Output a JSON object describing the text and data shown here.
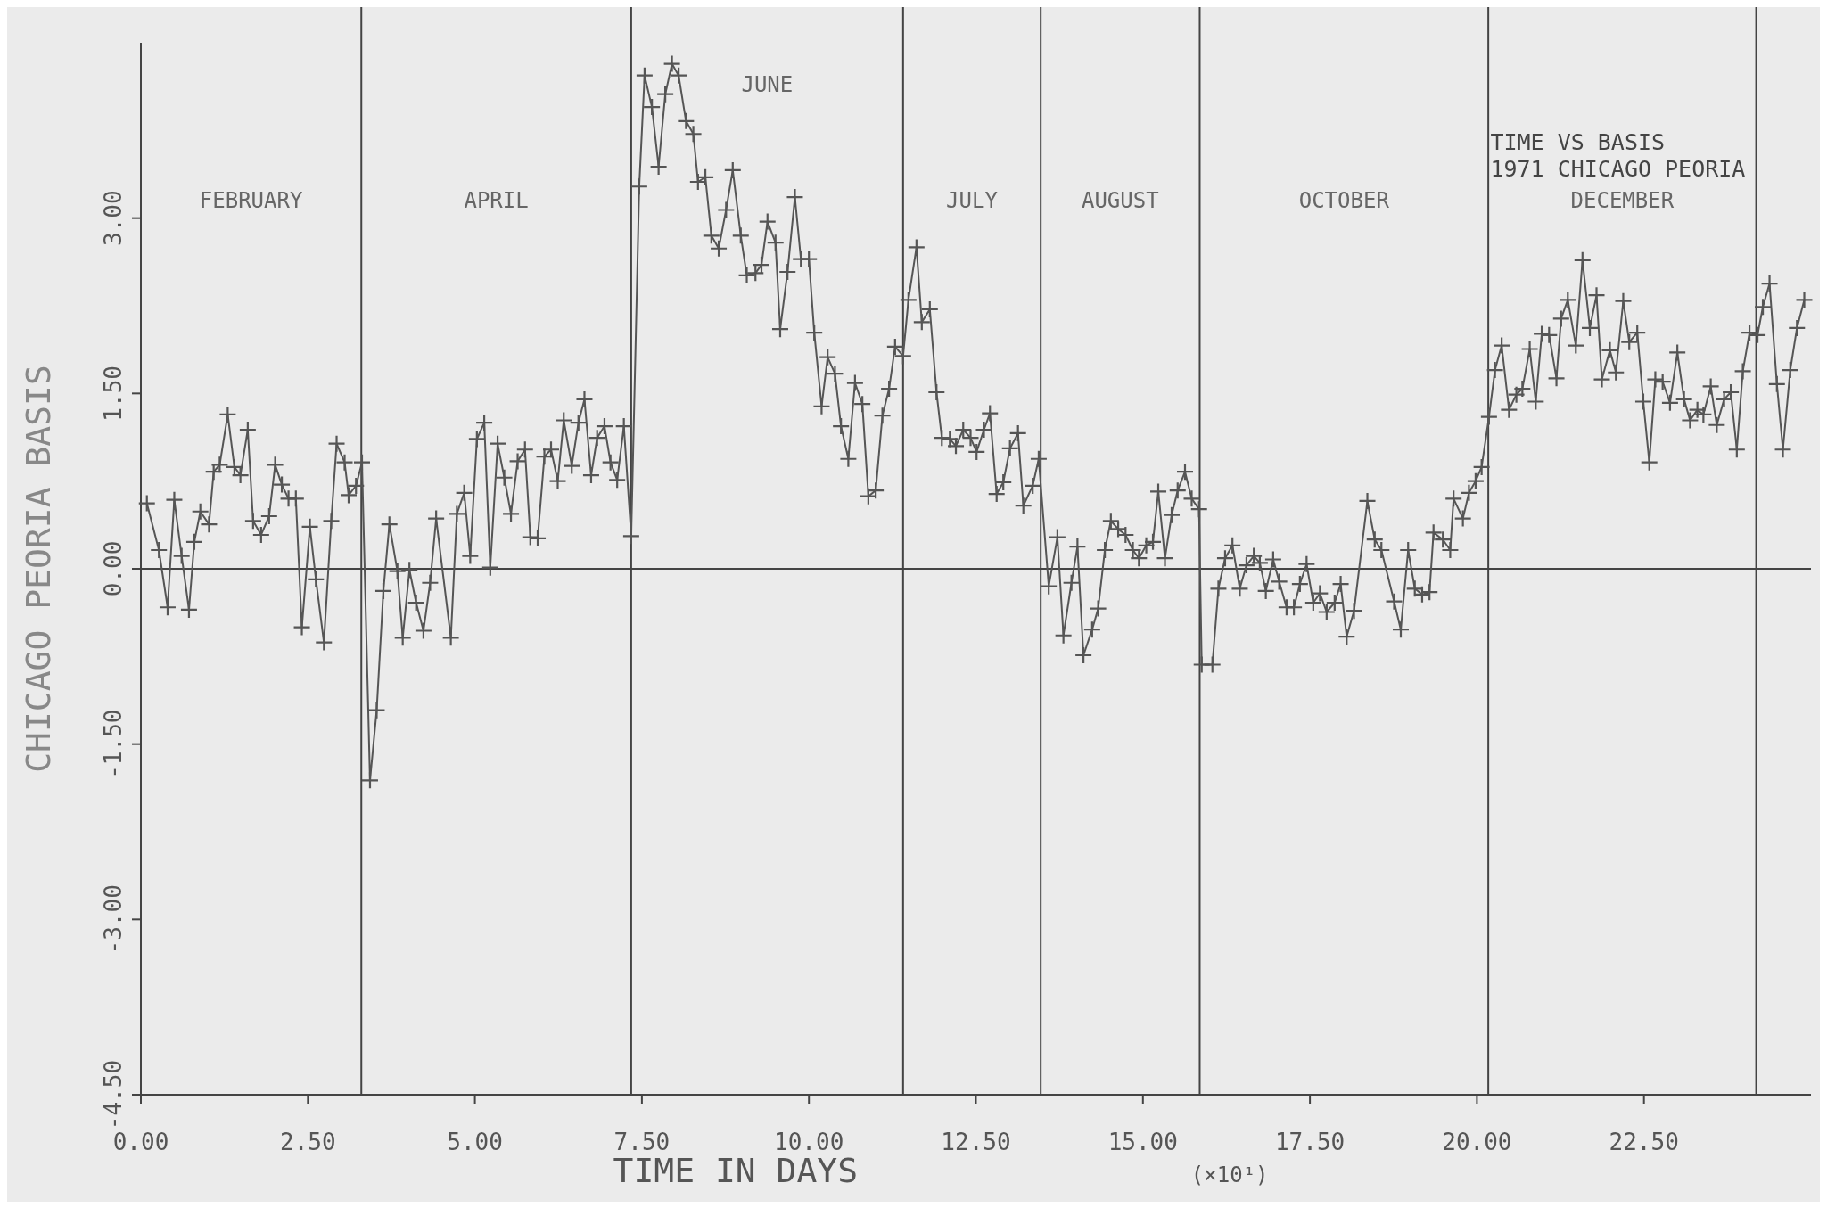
{
  "chart_data": {
    "type": "line",
    "title": "TIME VS BASIS",
    "subtitle": "1971 CHICAGO PEORIA",
    "xlabel": "TIME IN DAYS",
    "ylabel": "CHICAGO PEORIA BASIS",
    "annotations": [
      "(×10¹)",
      "FEBRUARY",
      "APRIL",
      "JUNE",
      "JULY",
      "AUGUST",
      "OCTOBER",
      "DECEMBER"
    ],
    "marker": "cross",
    "line_style": "solid",
    "xlim": [
      0,
      25
    ],
    "ylim": [
      -4.5,
      4.5
    ],
    "xticks": [
      {
        "value": 0,
        "label": "0.00"
      },
      {
        "value": 2.5,
        "label": "2.50"
      },
      {
        "value": 5,
        "label": "5.00"
      },
      {
        "value": 7.5,
        "label": "7.50"
      },
      {
        "value": 10,
        "label": "10.00"
      },
      {
        "value": 12.5,
        "label": "12.50"
      },
      {
        "value": 15,
        "label": "15.00"
      },
      {
        "value": 17.5,
        "label": "17.50"
      },
      {
        "value": 20,
        "label": "20.00"
      },
      {
        "value": 22.5,
        "label": "22.50"
      }
    ],
    "yticks": [
      {
        "value": -4.5,
        "label": "-4.50"
      },
      {
        "value": -3,
        "label": "-3.00"
      },
      {
        "value": -1.5,
        "label": "-1.50"
      },
      {
        "value": 0,
        "label": "0.00"
      },
      {
        "value": 1.5,
        "label": "1.50"
      },
      {
        "value": 3,
        "label": "3.00"
      }
    ],
    "ref_lines": [
      {
        "axis": "y",
        "value": 0
      },
      {
        "axis": "x",
        "value": 3.3
      },
      {
        "axis": "x",
        "value": 7.34
      },
      {
        "axis": "x",
        "value": 11.41
      },
      {
        "axis": "x",
        "value": 13.47
      },
      {
        "axis": "x",
        "value": 15.85
      },
      {
        "axis": "x",
        "value": 20.17
      },
      {
        "axis": "x",
        "value": 24.18
      }
    ],
    "series": [
      {
        "color": "#555555",
        "x": [
          0.09,
          0.27,
          0.4,
          0.5,
          0.61,
          0.72,
          0.8,
          0.89,
          1.02,
          1.09,
          1.18,
          1.3,
          1.4,
          1.49,
          1.6,
          1.68,
          1.8,
          1.92,
          2.01,
          2.11,
          2.21,
          2.32,
          2.41,
          2.53,
          2.62,
          2.74,
          2.85,
          2.93,
          3.05,
          3.11,
          3.22,
          3.31,
          3.43,
          3.53,
          3.63,
          3.72,
          3.84,
          3.92,
          4.02,
          4.12,
          4.23,
          4.33,
          4.42,
          4.64,
          4.73,
          4.84,
          4.93,
          5.03,
          5.14,
          5.23,
          5.34,
          5.44,
          5.54,
          5.64,
          5.75,
          5.83,
          5.94,
          6.04,
          6.14,
          6.24,
          6.33,
          6.45,
          6.55,
          6.64,
          6.74,
          6.83,
          6.94,
          7.03,
          7.13,
          7.23,
          7.34,
          7.46,
          7.54,
          7.65,
          7.75,
          7.85,
          7.95,
          8.05,
          8.16,
          8.27,
          8.34,
          8.45,
          8.54,
          8.65,
          8.76,
          8.86,
          8.98,
          9.07,
          9.2,
          9.29,
          9.38,
          9.5,
          9.57,
          9.68,
          9.79,
          9.88,
          10.0,
          10.08,
          10.19,
          10.28,
          10.39,
          10.48,
          10.59,
          10.69,
          10.8,
          10.89,
          11.0,
          11.1,
          11.2,
          11.29,
          11.41,
          11.49,
          11.61,
          11.69,
          11.81,
          11.91,
          11.99,
          12.11,
          12.2,
          12.31,
          12.42,
          12.51,
          12.62,
          12.71,
          12.81,
          12.91,
          13.01,
          13.13,
          13.21,
          13.35,
          13.44,
          13.59,
          13.72,
          13.81,
          13.93,
          14.02,
          14.11,
          14.24,
          14.33,
          14.43,
          14.52,
          14.63,
          14.74,
          14.85,
          14.94,
          15.05,
          15.15,
          15.23,
          15.33,
          15.43,
          15.52,
          15.63,
          15.73,
          15.84,
          15.88,
          16.04,
          16.13,
          16.23,
          16.34,
          16.45,
          16.55,
          16.66,
          16.75,
          16.84,
          16.95,
          17.04,
          17.15,
          17.26,
          17.35,
          17.45,
          17.55,
          17.65,
          17.75,
          17.87,
          17.96,
          18.05,
          18.16,
          18.36,
          18.47,
          18.57,
          18.76,
          18.86,
          18.97,
          19.07,
          19.18,
          19.29,
          19.35,
          19.49,
          19.6,
          19.65,
          19.79,
          19.88,
          19.98,
          20.07,
          20.18,
          20.27,
          20.37,
          20.48,
          20.59,
          20.68,
          20.79,
          20.88,
          20.97,
          21.08,
          21.19,
          21.26,
          21.36,
          21.48,
          21.58,
          21.69,
          21.79,
          21.87,
          21.99,
          22.08,
          22.19,
          22.28,
          22.4,
          22.49,
          22.58,
          22.67,
          22.78,
          22.89,
          23.0,
          23.1,
          23.19,
          23.3,
          23.39,
          23.5,
          23.59,
          23.7,
          23.8,
          23.89,
          23.98,
          24.08,
          24.2,
          24.28,
          24.38,
          24.49,
          24.58,
          24.69,
          24.79,
          24.9
        ],
        "values": [
          0.56,
          0.16,
          -0.33,
          0.59,
          0.11,
          -0.35,
          0.23,
          0.49,
          0.38,
          0.83,
          0.89,
          1.32,
          0.87,
          0.8,
          1.19,
          0.41,
          0.29,
          0.45,
          0.89,
          0.72,
          0.6,
          0.6,
          -0.5,
          0.36,
          -0.09,
          -0.63,
          0.41,
          1.07,
          0.91,
          0.63,
          0.71,
          0.91,
          -1.81,
          -1.21,
          -0.19,
          0.38,
          -0.02,
          -0.59,
          -0.01,
          -0.29,
          -0.53,
          -0.12,
          0.43,
          -0.59,
          0.47,
          0.65,
          0.11,
          1.11,
          1.25,
          0.01,
          1.07,
          0.78,
          0.47,
          0.92,
          1.02,
          0.27,
          0.26,
          0.96,
          1.02,
          0.75,
          1.27,
          0.88,
          1.25,
          1.45,
          0.8,
          1.12,
          1.22,
          0.91,
          0.76,
          1.22,
          0.28,
          3.27,
          4.22,
          3.95,
          3.44,
          4.06,
          4.32,
          4.22,
          3.83,
          3.72,
          3.31,
          3.35,
          2.85,
          2.74,
          3.07,
          3.41,
          2.85,
          2.51,
          2.53,
          2.6,
          2.97,
          2.79,
          2.05,
          2.54,
          3.18,
          2.65,
          2.65,
          2.02,
          1.39,
          1.81,
          1.67,
          1.22,
          0.94,
          1.59,
          1.41,
          0.62,
          0.67,
          1.31,
          1.54,
          1.9,
          1.82,
          2.3,
          2.75,
          2.11,
          2.22,
          1.51,
          1.12,
          1.11,
          1.05,
          1.19,
          1.12,
          1.0,
          1.19,
          1.33,
          0.64,
          0.74,
          1.03,
          1.16,
          0.54,
          0.71,
          0.94,
          -0.15,
          0.27,
          -0.57,
          -0.12,
          0.19,
          -0.74,
          -0.52,
          -0.34,
          0.16,
          0.41,
          0.34,
          0.29,
          0.16,
          0.09,
          0.2,
          0.23,
          0.66,
          0.09,
          0.46,
          0.67,
          0.83,
          0.6,
          0.51,
          -0.82,
          -0.82,
          -0.17,
          0.09,
          0.2,
          -0.17,
          0.03,
          0.11,
          0.05,
          -0.19,
          0.08,
          -0.11,
          -0.33,
          -0.33,
          -0.13,
          0.04,
          -0.29,
          -0.21,
          -0.37,
          -0.29,
          -0.13,
          -0.58,
          -0.36,
          0.58,
          0.25,
          0.16,
          -0.28,
          -0.52,
          0.16,
          -0.17,
          -0.22,
          -0.2,
          0.31,
          0.25,
          0.16,
          0.6,
          0.43,
          0.65,
          0.75,
          0.87,
          1.3,
          1.7,
          1.91,
          1.36,
          1.49,
          1.54,
          1.88,
          1.43,
          2.01,
          2.0,
          1.63,
          2.14,
          2.3,
          1.91,
          2.64,
          2.06,
          2.34,
          1.62,
          1.87,
          1.68,
          2.29,
          1.94,
          2.02,
          1.43,
          0.91,
          1.62,
          1.6,
          1.42,
          1.85,
          1.45,
          1.27,
          1.36,
          1.32,
          1.56,
          1.23,
          1.45,
          1.51,
          1.02,
          1.69,
          2.02,
          2.0,
          2.24,
          2.44,
          1.58,
          1.02,
          1.7,
          2.06,
          2.3
        ]
      }
    ]
  }
}
